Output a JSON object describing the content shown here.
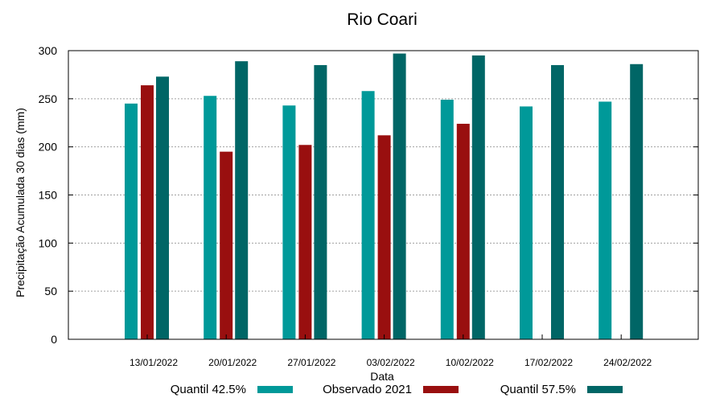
{
  "chart_data": {
    "type": "bar",
    "title": "Rio Coari",
    "xlabel": "Data",
    "ylabel": "Precipitação Acumulada 30 dias (mm)",
    "ylim": [
      0,
      300
    ],
    "yticks": [
      0,
      50,
      100,
      150,
      200,
      250,
      300
    ],
    "grid": true,
    "legend_position": "bottom",
    "categories": [
      "13/01/2022",
      "20/01/2022",
      "27/01/2022",
      "03/02/2022",
      "10/02/2022",
      "17/02/2022",
      "24/02/2022"
    ],
    "series": [
      {
        "name": "Quantil 42.5%",
        "color": "#009999",
        "values": [
          245,
          253,
          243,
          258,
          249,
          242,
          247
        ]
      },
      {
        "name": "Observado 2021",
        "color": "#990f0f",
        "values": [
          264,
          195,
          202,
          212,
          224,
          null,
          null
        ]
      },
      {
        "name": "Quantil 57.5%",
        "color": "#006666",
        "values": [
          273,
          289,
          285,
          297,
          295,
          285,
          286
        ]
      }
    ]
  }
}
